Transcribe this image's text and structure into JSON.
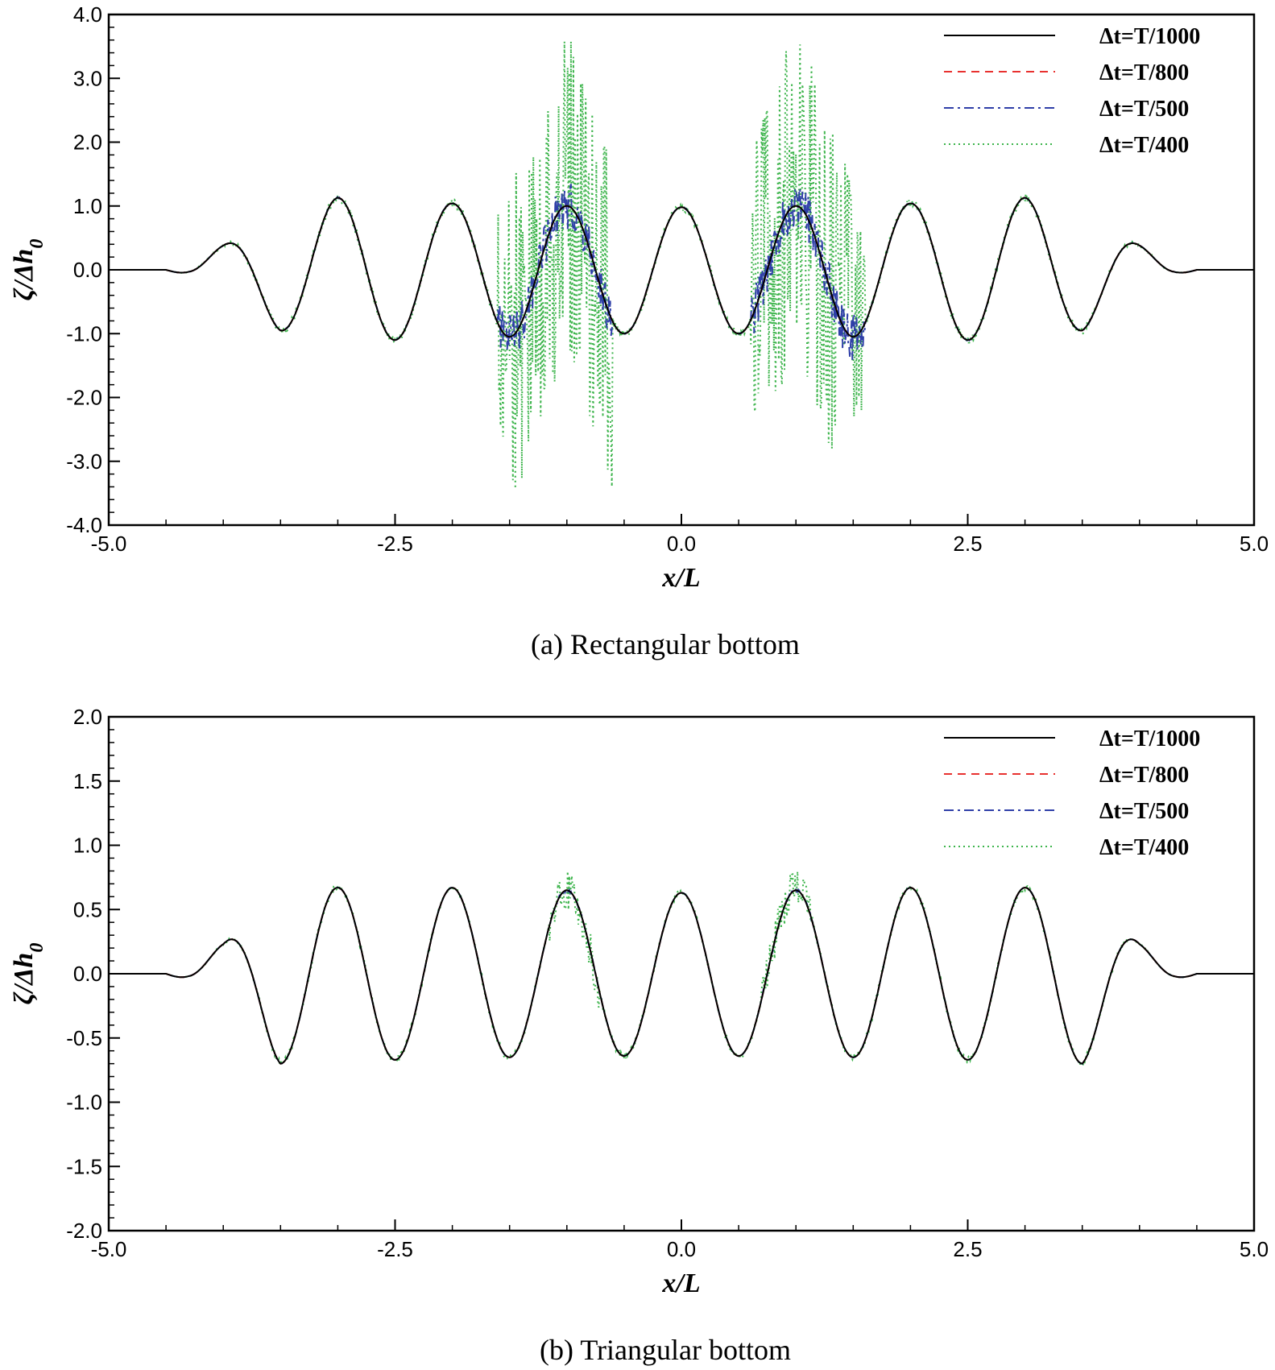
{
  "chart_data": [
    {
      "id": "a",
      "type": "line",
      "caption": "(a) Rectangular bottom",
      "xlabel": "x/L",
      "ylabel": "ζ/Δh",
      "ylabel_sub": "0",
      "xlim": [
        -5.0,
        5.0
      ],
      "ylim": [
        -4.0,
        4.0
      ],
      "xticks": [
        "-5.0",
        "-2.5",
        "0.0",
        "2.5",
        "5.0"
      ],
      "yticks": [
        "4.0",
        "3.0",
        "2.0",
        "1.0",
        "0.0",
        "-1.0",
        "-2.0",
        "-3.0",
        "-4.0"
      ],
      "legend_position": "top-right",
      "amplitude_profile": {
        "x": [
          -5.0,
          -4.5,
          -4.3,
          -4.0,
          -3.5,
          -3.0,
          -2.5,
          -2.0,
          -1.5,
          -1.0,
          -0.5,
          0.0,
          0.5,
          1.0,
          1.5,
          2.0,
          2.5,
          3.0,
          3.5,
          4.0,
          4.3,
          4.5,
          5.0
        ],
        "y": [
          0.0,
          0.0,
          0.1,
          0.38,
          0.95,
          1.13,
          1.1,
          1.04,
          1.05,
          1.0,
          1.0,
          0.98,
          1.0,
          1.0,
          1.05,
          1.04,
          1.1,
          1.13,
          0.95,
          0.38,
          0.1,
          0.0,
          0.0
        ]
      },
      "noise_zones": [
        {
          "from": -1.6,
          "to": -0.6,
          "amp": 2.6
        },
        {
          "from": 0.6,
          "to": 1.6,
          "amp": 2.6
        }
      ],
      "series": [
        {
          "name": "Δt=T/1000",
          "color": "#000000",
          "dash": "solid",
          "jitter": 0.0
        },
        {
          "name": "Δt=T/800",
          "color": "#e8312f",
          "dash": "dashed",
          "jitter": 0.0
        },
        {
          "name": "Δt=T/500",
          "color": "#2f3fa8",
          "dash": "dashdot",
          "jitter": 0.14
        },
        {
          "name": "Δt=T/400",
          "color": "#3cb44b",
          "dash": "dotted",
          "jitter": 1.0
        }
      ]
    },
    {
      "id": "b",
      "type": "line",
      "caption": "(b) Triangular bottom",
      "xlabel": "x/L",
      "ylabel": "ζ/Δh",
      "ylabel_sub": "0",
      "xlim": [
        -5.0,
        5.0
      ],
      "ylim": [
        -2.0,
        2.0
      ],
      "xticks": [
        "-5.0",
        "-2.5",
        "0.0",
        "2.5",
        "5.0"
      ],
      "yticks": [
        "2.0",
        "1.5",
        "1.0",
        "0.5",
        "0.0",
        "-0.5",
        "-1.0",
        "-1.5",
        "-2.0"
      ],
      "legend_position": "top-right",
      "amplitude_profile": {
        "x": [
          -5.0,
          -4.5,
          -4.3,
          -4.0,
          -3.5,
          -3.0,
          -2.5,
          -2.0,
          -1.5,
          -1.0,
          -0.5,
          0.0,
          0.5,
          1.0,
          1.5,
          2.0,
          2.5,
          3.0,
          3.5,
          4.0,
          4.3,
          4.5,
          5.0
        ],
        "y": [
          0.0,
          0.0,
          0.06,
          0.23,
          0.7,
          0.67,
          0.67,
          0.67,
          0.65,
          0.65,
          0.64,
          0.63,
          0.64,
          0.65,
          0.65,
          0.67,
          0.67,
          0.67,
          0.7,
          0.23,
          0.06,
          0.0,
          0.0
        ]
      },
      "noise_zones": [
        {
          "from": -1.15,
          "to": -0.7,
          "amp": 0.22
        },
        {
          "from": 0.7,
          "to": 1.15,
          "amp": 0.22
        }
      ],
      "series": [
        {
          "name": "Δt=T/1000",
          "color": "#000000",
          "dash": "solid",
          "jitter": 0.0
        },
        {
          "name": "Δt=T/800",
          "color": "#e8312f",
          "dash": "dashed",
          "jitter": 0.0
        },
        {
          "name": "Δt=T/500",
          "color": "#2f3fa8",
          "dash": "dashdot",
          "jitter": 0.05
        },
        {
          "name": "Δt=T/400",
          "color": "#3cb44b",
          "dash": "dotted",
          "jitter": 0.6
        }
      ]
    }
  ]
}
